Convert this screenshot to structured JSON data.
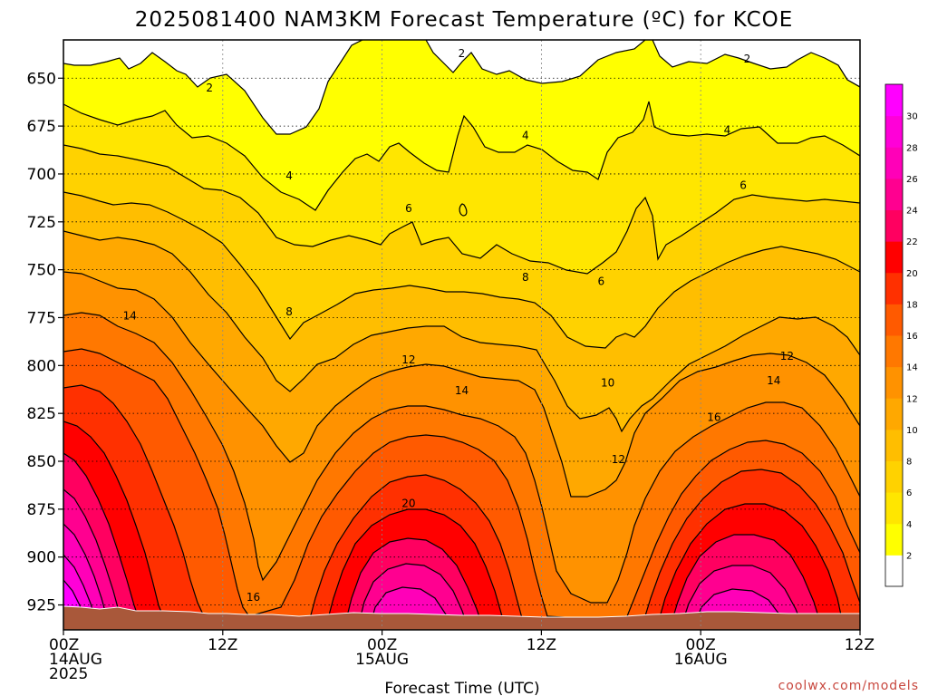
{
  "chart_data": {
    "type": "heatmap",
    "title": "2025081400 NAM3KM Forecast Temperature (ºC) for KCOE",
    "xlabel": "Forecast Time (UTC)",
    "ylabel": "",
    "y_ticks": [
      650,
      675,
      700,
      725,
      750,
      775,
      800,
      825,
      850,
      875,
      900,
      925
    ],
    "ylim": [
      938,
      630
    ],
    "x_ticks": [
      {
        "hour": 0,
        "lines": [
          "00Z",
          "14AUG",
          "2025"
        ]
      },
      {
        "hour": 12,
        "lines": [
          "12Z"
        ]
      },
      {
        "hour": 24,
        "lines": [
          "00Z",
          "15AUG"
        ]
      },
      {
        "hour": 36,
        "lines": [
          "12Z"
        ]
      },
      {
        "hour": 48,
        "lines": [
          "00Z",
          "16AUG"
        ]
      },
      {
        "hour": 60,
        "lines": [
          "12Z"
        ]
      }
    ],
    "xlim": [
      0,
      60
    ],
    "colorbar": {
      "levels": [
        2,
        4,
        6,
        8,
        10,
        12,
        14,
        16,
        18,
        20,
        22,
        24,
        26,
        28,
        30
      ],
      "colors": [
        "#ffffff",
        "#ffff00",
        "#ffe600",
        "#ffd200",
        "#ffbe00",
        "#ffa800",
        "#ff9200",
        "#ff7800",
        "#ff5a00",
        "#ff3000",
        "#ff0000",
        "#ff0060",
        "#ff0090",
        "#ff00b8",
        "#ff00d8",
        "#ff00ff"
      ]
    },
    "contour_labels": [
      {
        "text": "2",
        "hour": 11.0,
        "p": 655
      },
      {
        "text": "2",
        "hour": 30.0,
        "p": 637
      },
      {
        "text": "2",
        "hour": 51.5,
        "p": 640
      },
      {
        "text": "4",
        "hour": 17.0,
        "p": 701
      },
      {
        "text": "4",
        "hour": 34.8,
        "p": 680
      },
      {
        "text": "4",
        "hour": 50.0,
        "p": 677
      },
      {
        "text": "6",
        "hour": 26.0,
        "p": 718
      },
      {
        "text": "6",
        "hour": 40.5,
        "p": 756
      },
      {
        "text": "6",
        "hour": 51.2,
        "p": 706
      },
      {
        "text": "8",
        "hour": 17.0,
        "p": 772
      },
      {
        "text": "8",
        "hour": 34.8,
        "p": 754
      },
      {
        "text": "10",
        "hour": 41.0,
        "p": 809
      },
      {
        "text": "12",
        "hour": 26.0,
        "p": 797
      },
      {
        "text": "12",
        "hour": 41.8,
        "p": 849
      },
      {
        "text": "12",
        "hour": 54.5,
        "p": 795
      },
      {
        "text": "14",
        "hour": 5.0,
        "p": 774
      },
      {
        "text": "14",
        "hour": 30.0,
        "p": 813
      },
      {
        "text": "14",
        "hour": 53.5,
        "p": 808
      },
      {
        "text": "16",
        "hour": 14.3,
        "p": 921
      },
      {
        "text": "16",
        "hour": 49.0,
        "p": 827
      },
      {
        "text": "20",
        "hour": 26.0,
        "p": 872
      }
    ],
    "credit": "coolwx.com/models"
  }
}
